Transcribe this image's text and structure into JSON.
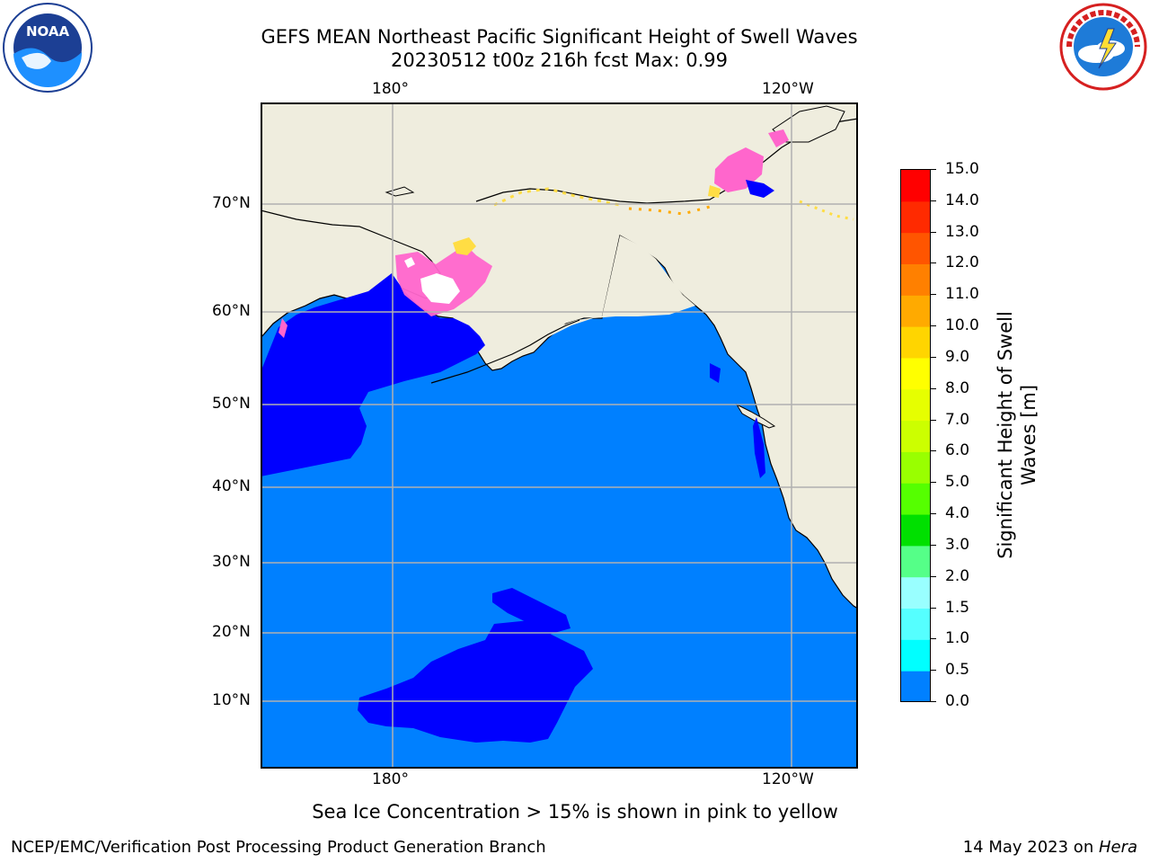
{
  "header": {
    "title_line1": "GEFS MEAN Northeast Pacific Significant Height of Swell Waves",
    "title_line2": "20230512 t00z 216h fcst   Max: 0.99"
  },
  "logos": {
    "left": {
      "name": "NOAA",
      "ring_text": "NATIONAL OCEANIC AND ATMOSPHERIC ADMINISTRATION · U.S. DEPARTMENT OF COMMERCE"
    },
    "right": {
      "ring_text": "NATIONAL WEATHER SERVICE"
    }
  },
  "map": {
    "lon_labels_top": [
      "180°",
      "120°W"
    ],
    "lon_labels_bottom": [
      "180°",
      "120°W"
    ],
    "lat_labels": [
      "70°N",
      "60°N",
      "50°N",
      "40°N",
      "30°N",
      "20°N",
      "10°N"
    ],
    "colors": {
      "ocean_0_0_5": "#0000ff",
      "ocean_0_5_1_0": "#0080ff",
      "land": "#efedde",
      "grid": "#b0b0b0",
      "sea_ice_pink": "#ff66cc",
      "sea_ice_yellow": "#ffdd44"
    }
  },
  "colorbar": {
    "label": "Significant Height of Swell Waves [m]",
    "label_line1": "Significant Height of Swell",
    "label_line2": "Waves [m]",
    "ticks": [
      "15.0",
      "14.0",
      "13.0",
      "12.0",
      "11.0",
      "10.0",
      "9.0",
      "8.0",
      "7.0",
      "6.0",
      "5.0",
      "4.0",
      "3.0",
      "2.0",
      "1.5",
      "1.0",
      "0.5",
      "0.0"
    ],
    "colors_top_to_bottom": [
      "#ff0000",
      "#ff2a00",
      "#ff5500",
      "#ff8000",
      "#ffaa00",
      "#ffd500",
      "#ffff00",
      "#e6ff00",
      "#ccff00",
      "#99ff00",
      "#55ff00",
      "#00e000",
      "#55ff88",
      "#99ffff",
      "#55ffff",
      "#00ffff",
      "#0080ff",
      "#0000ff"
    ]
  },
  "caption": "Sea Ice Concentration > 15% is shown in pink to yellow",
  "footer": {
    "left": "NCEP/EMC/Verification Post Processing Product Generation Branch",
    "right_prefix": "14 May 2023 on ",
    "right_host": "Hera"
  }
}
